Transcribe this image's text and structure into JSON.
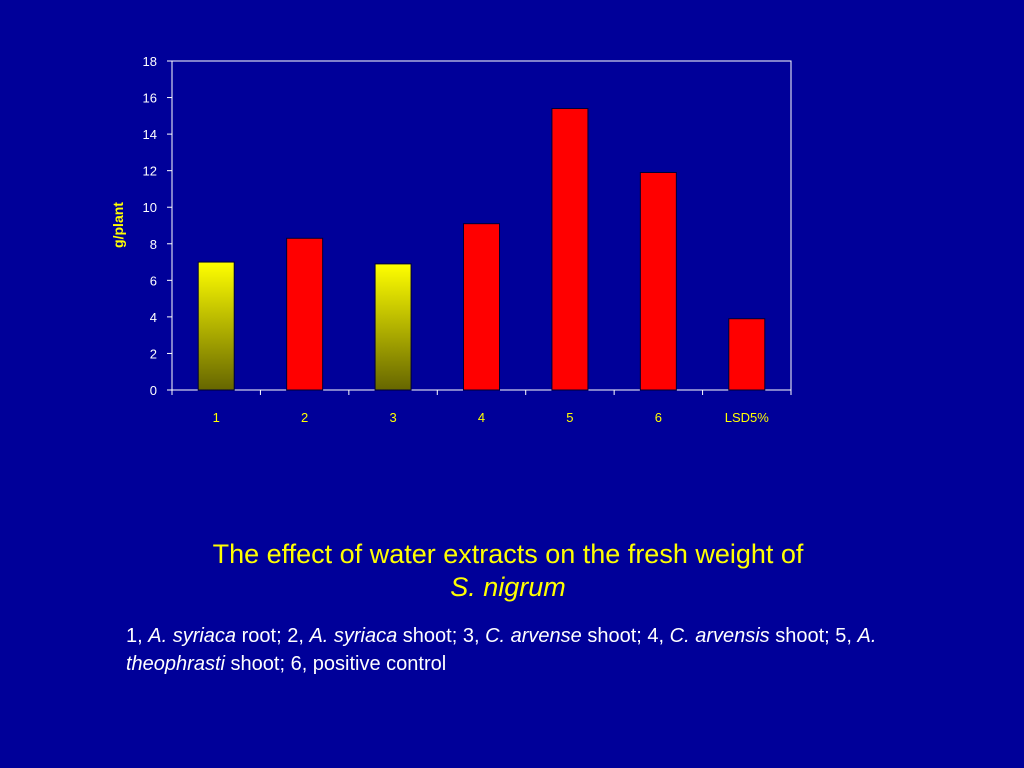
{
  "colors": {
    "background": "#000099",
    "axis": "#ffffff",
    "bar_red": "#ff0000",
    "bar_yellow_top": "#ffff00",
    "bar_yellow_bottom": "#666600",
    "tick_label": "#ffffff",
    "category_label": "#ffff00",
    "ylabel": "#ffff00",
    "caption": "#ffff00",
    "legend_text": "#ffffff"
  },
  "chart_data": {
    "type": "bar",
    "title": "",
    "xlabel": "",
    "ylabel": "g/plant",
    "ylim": [
      0,
      18
    ],
    "yticks": [
      0,
      2,
      4,
      6,
      8,
      10,
      12,
      14,
      16,
      18
    ],
    "grid": false,
    "categories": [
      "1",
      "2",
      "3",
      "4",
      "5",
      "6",
      "LSD5%"
    ],
    "values": [
      7.0,
      8.3,
      6.9,
      9.1,
      15.4,
      11.9,
      3.9
    ],
    "bar_styles": [
      "yellow-gradient",
      "red",
      "yellow-gradient",
      "red",
      "red",
      "red",
      "red"
    ]
  },
  "caption": {
    "title_main": "The effect of water extracts on the fresh weight of",
    "title_species": "S. nigrum"
  },
  "legend": {
    "t1": "1, ",
    "s1": "A. syriaca",
    "t2": " root; 2, ",
    "s2": "A. syriaca",
    "t3": " shoot; 3, ",
    "s3": "C. arvense",
    "t4": " shoot; 4, ",
    "s4": "C. arvensis",
    "t5": " shoot; 5, ",
    "s5": "A. theophrasti",
    "t6": " shoot; 6, positive control"
  }
}
